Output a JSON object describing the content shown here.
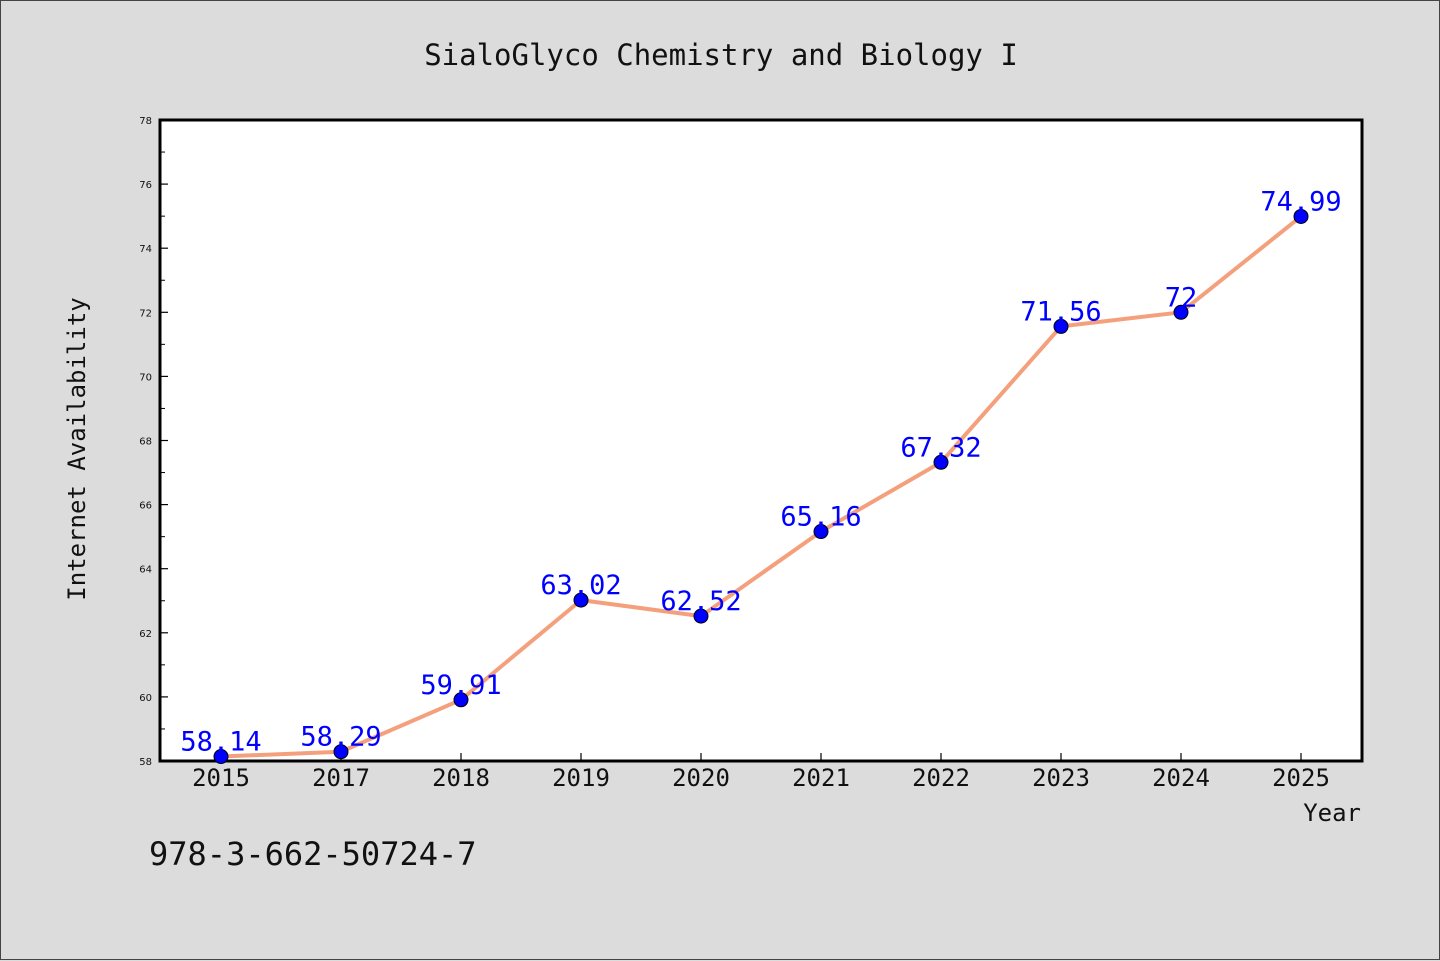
{
  "chart_data": {
    "type": "line",
    "title": "SialoGlyco Chemistry and Biology I",
    "xlabel": "Year",
    "ylabel": "Internet Availability",
    "categories": [
      "2015",
      "2017",
      "2018",
      "2019",
      "2020",
      "2021",
      "2022",
      "2023",
      "2024",
      "2025"
    ],
    "series": [
      {
        "values": [
          58.14,
          58.29,
          59.91,
          63.02,
          62.52,
          65.16,
          67.32,
          71.56,
          72,
          74.99
        ],
        "labels": [
          "58.14",
          "58.29",
          "59.91",
          "63.02",
          "62.52",
          "65.16",
          "67.32",
          "71.56",
          "72",
          "74.99"
        ],
        "line_color": "#f4a07c",
        "marker_color": "#0000ff"
      }
    ],
    "ylim": [
      58,
      78
    ],
    "yticks": [
      "58",
      "60",
      "62",
      "64",
      "66",
      "68",
      "70",
      "72",
      "74",
      "76",
      "78"
    ],
    "grid": false,
    "legend": "none"
  },
  "footer": {
    "isbn": "978-3-662-50724-7"
  },
  "colors": {
    "background": "#dcdcdc",
    "plot_background": "#ffffff",
    "label_color": "#0000ff"
  }
}
